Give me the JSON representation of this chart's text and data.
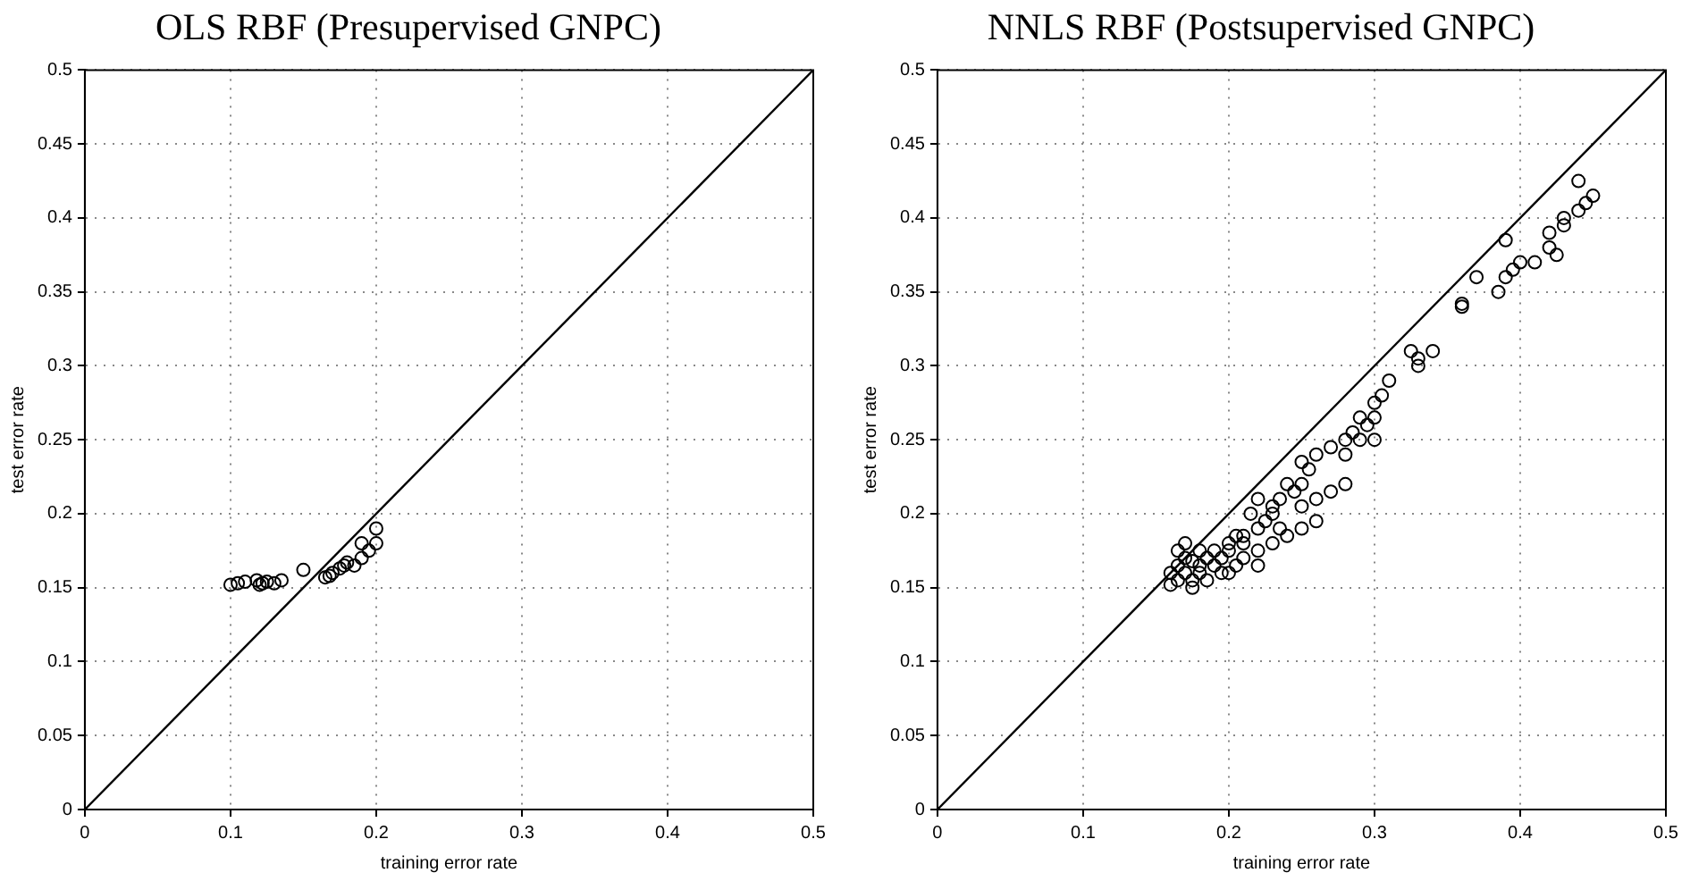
{
  "chart_data": [
    {
      "type": "scatter",
      "title": "OLS RBF (Presupervised GNPC)",
      "xlabel": "training error rate",
      "ylabel": "test error rate",
      "xlim": [
        0,
        0.5
      ],
      "ylim": [
        0,
        0.5
      ],
      "xticks": [
        0,
        0.1,
        0.2,
        0.3,
        0.4,
        0.5
      ],
      "yticks": [
        0,
        0.05,
        0.1,
        0.15,
        0.2,
        0.25,
        0.3,
        0.35,
        0.4,
        0.45,
        0.5
      ],
      "grid": true,
      "legend": false,
      "series": [
        {
          "marker": "circle",
          "color": "#000000",
          "x": [
            0.1,
            0.105,
            0.11,
            0.118,
            0.12,
            0.122,
            0.125,
            0.13,
            0.135,
            0.15,
            0.165,
            0.168,
            0.17,
            0.175,
            0.178,
            0.18,
            0.185,
            0.19,
            0.19,
            0.195,
            0.2,
            0.2
          ],
          "values": [
            0.152,
            0.153,
            0.154,
            0.155,
            0.152,
            0.153,
            0.154,
            0.153,
            0.155,
            0.162,
            0.157,
            0.158,
            0.16,
            0.163,
            0.165,
            0.167,
            0.165,
            0.17,
            0.18,
            0.175,
            0.18,
            0.19
          ]
        },
        {
          "type": "line",
          "marker": "none",
          "color": "#000000",
          "line_style": "solid",
          "x": [
            0,
            0.5
          ],
          "values": [
            0,
            0.5
          ]
        }
      ]
    },
    {
      "type": "scatter",
      "title": "NNLS RBF (Postsupervised GNPC)",
      "xlabel": "training error rate",
      "ylabel": "test error rate",
      "xlim": [
        0,
        0.5
      ],
      "ylim": [
        0,
        0.5
      ],
      "xticks": [
        0,
        0.1,
        0.2,
        0.3,
        0.4,
        0.5
      ],
      "yticks": [
        0,
        0.05,
        0.1,
        0.15,
        0.2,
        0.25,
        0.3,
        0.35,
        0.4,
        0.45,
        0.5
      ],
      "grid": true,
      "legend": false,
      "series": [
        {
          "marker": "circle",
          "color": "#000000",
          "x": [
            0.44,
            0.45,
            0.445,
            0.44,
            0.43,
            0.43,
            0.42,
            0.42,
            0.425,
            0.41,
            0.4,
            0.39,
            0.385,
            0.39,
            0.395,
            0.37,
            0.36,
            0.36,
            0.34,
            0.33,
            0.33,
            0.325,
            0.31,
            0.305,
            0.3,
            0.3,
            0.295,
            0.29,
            0.29,
            0.285,
            0.28,
            0.28,
            0.27,
            0.27,
            0.26,
            0.255,
            0.25,
            0.25,
            0.25,
            0.245,
            0.24,
            0.235,
            0.23,
            0.23,
            0.225,
            0.22,
            0.22,
            0.215,
            0.21,
            0.21,
            0.205,
            0.2,
            0.2,
            0.195,
            0.19,
            0.19,
            0.185,
            0.18,
            0.18,
            0.175,
            0.175,
            0.17,
            0.17,
            0.165,
            0.165,
            0.16,
            0.16,
            0.165,
            0.175,
            0.185,
            0.195,
            0.205,
            0.21,
            0.22,
            0.23,
            0.24,
            0.25,
            0.26,
            0.2,
            0.18,
            0.17,
            0.22,
            0.235,
            0.26,
            0.28,
            0.3
          ],
          "values": [
            0.425,
            0.415,
            0.41,
            0.405,
            0.4,
            0.395,
            0.39,
            0.38,
            0.375,
            0.37,
            0.37,
            0.385,
            0.35,
            0.36,
            0.365,
            0.36,
            0.34,
            0.342,
            0.31,
            0.305,
            0.3,
            0.31,
            0.29,
            0.28,
            0.275,
            0.265,
            0.26,
            0.265,
            0.25,
            0.255,
            0.25,
            0.24,
            0.245,
            0.215,
            0.24,
            0.23,
            0.235,
            0.22,
            0.205,
            0.215,
            0.22,
            0.21,
            0.205,
            0.2,
            0.195,
            0.21,
            0.19,
            0.2,
            0.185,
            0.18,
            0.185,
            0.175,
            0.18,
            0.17,
            0.175,
            0.165,
            0.17,
            0.165,
            0.16,
            0.168,
            0.155,
            0.16,
            0.17,
            0.165,
            0.155,
            0.16,
            0.152,
            0.175,
            0.15,
            0.155,
            0.16,
            0.165,
            0.17,
            0.175,
            0.18,
            0.185,
            0.19,
            0.195,
            0.16,
            0.175,
            0.18,
            0.165,
            0.19,
            0.21,
            0.22,
            0.25
          ]
        },
        {
          "type": "line",
          "marker": "none",
          "color": "#000000",
          "line_style": "solid",
          "x": [
            0,
            0.5
          ],
          "values": [
            0,
            0.5
          ]
        }
      ]
    }
  ]
}
